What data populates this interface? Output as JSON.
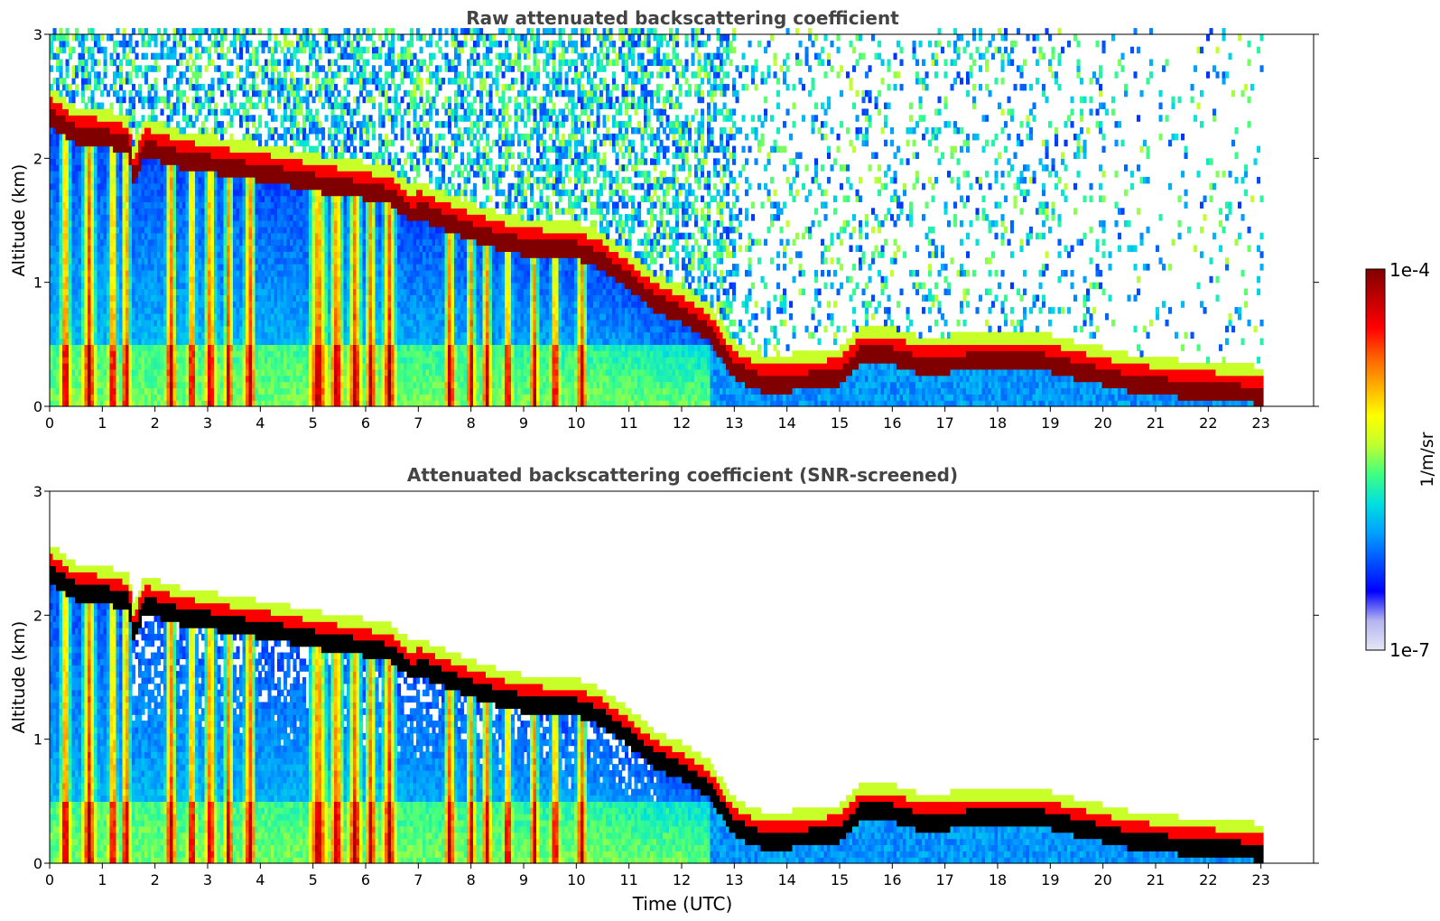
{
  "chart_data": [
    {
      "type": "heatmap",
      "title": "Raw attenuated backscattering coefficient",
      "ylabel": "Altitude (km)",
      "xlabel": "",
      "xlim": [
        0,
        24
      ],
      "ylim": [
        0,
        3
      ],
      "xticks": [
        "0",
        "1",
        "2",
        "3",
        "4",
        "5",
        "6",
        "7",
        "8",
        "9",
        "10",
        "11",
        "12",
        "13",
        "14",
        "15",
        "16",
        "17",
        "18",
        "19",
        "20",
        "21",
        "22",
        "23"
      ],
      "yticks": [
        "0",
        "1",
        "2",
        "3"
      ],
      "data_end_hour": 23,
      "screened": false,
      "cloud_base_km": [
        [
          0,
          2.35
        ],
        [
          0.5,
          2.2
        ],
        [
          1,
          2.18
        ],
        [
          1.5,
          2.12
        ],
        [
          1.6,
          1.85
        ],
        [
          1.8,
          2.1
        ],
        [
          2.5,
          2.0
        ],
        [
          3,
          1.97
        ],
        [
          3.5,
          1.93
        ],
        [
          4,
          1.9
        ],
        [
          4.5,
          1.86
        ],
        [
          5,
          1.82
        ],
        [
          5.5,
          1.78
        ],
        [
          6,
          1.75
        ],
        [
          6.5,
          1.7
        ],
        [
          6.9,
          1.55
        ],
        [
          7,
          1.6
        ],
        [
          7.5,
          1.5
        ],
        [
          8,
          1.42
        ],
        [
          8.5,
          1.35
        ],
        [
          9,
          1.3
        ],
        [
          9.5,
          1.28
        ],
        [
          10,
          1.27
        ],
        [
          10.5,
          1.18
        ],
        [
          11,
          1.02
        ],
        [
          11.5,
          0.85
        ],
        [
          12,
          0.75
        ],
        [
          12.5,
          0.62
        ],
        [
          13,
          0.3
        ],
        [
          13.5,
          0.2
        ],
        [
          14,
          0.2
        ],
        [
          14.5,
          0.22
        ],
        [
          15,
          0.25
        ],
        [
          15.4,
          0.42
        ],
        [
          16,
          0.42
        ],
        [
          16.5,
          0.35
        ],
        [
          17,
          0.35
        ],
        [
          17.5,
          0.37
        ],
        [
          18,
          0.38
        ],
        [
          18.5,
          0.38
        ],
        [
          19,
          0.36
        ],
        [
          19.5,
          0.3
        ],
        [
          20,
          0.25
        ],
        [
          20.5,
          0.2
        ],
        [
          21,
          0.18
        ],
        [
          21.5,
          0.15
        ],
        [
          22,
          0.14
        ],
        [
          22.5,
          0.12
        ],
        [
          23,
          0.1
        ]
      ],
      "fallstreaks": [
        [
          0.3,
          0.12
        ],
        [
          0.75,
          0.15
        ],
        [
          1.2,
          0.1
        ],
        [
          1.45,
          0.1
        ],
        [
          2.3,
          0.12
        ],
        [
          2.7,
          0.1
        ],
        [
          3.05,
          0.12
        ],
        [
          3.4,
          0.1
        ],
        [
          3.8,
          0.13
        ],
        [
          5.1,
          0.2
        ],
        [
          5.45,
          0.15
        ],
        [
          5.8,
          0.15
        ],
        [
          6.1,
          0.12
        ],
        [
          6.45,
          0.15
        ],
        [
          7.6,
          0.12
        ],
        [
          8.0,
          0.1
        ],
        [
          8.3,
          0.1
        ],
        [
          8.7,
          0.1
        ],
        [
          9.2,
          0.1
        ],
        [
          9.6,
          0.1
        ],
        [
          10.1,
          0.12
        ]
      ]
    },
    {
      "type": "heatmap",
      "title": "Attenuated backscattering coefficient (SNR-screened)",
      "ylabel": "Altitude (km)",
      "xlabel": "Time (UTC)",
      "xlim": [
        0,
        24
      ],
      "ylim": [
        0,
        3
      ],
      "xticks": [
        "0",
        "1",
        "2",
        "3",
        "4",
        "5",
        "6",
        "7",
        "8",
        "9",
        "10",
        "11",
        "12",
        "13",
        "14",
        "15",
        "16",
        "17",
        "18",
        "19",
        "20",
        "21",
        "22",
        "23"
      ],
      "yticks": [
        "0",
        "1",
        "2",
        "3"
      ],
      "data_end_hour": 23,
      "screened": true,
      "colorbar": {
        "label": "1/m/sr",
        "max_label": "1e-4",
        "min_label": "1e-7",
        "colors": [
          "#e6e6f5",
          "#b4b4f0",
          "#0000ff",
          "#0050ff",
          "#00a0ff",
          "#00e0e0",
          "#40ff80",
          "#c0ff30",
          "#ffff00",
          "#ffb000",
          "#ff6000",
          "#ff0000",
          "#c00000",
          "#800000"
        ]
      }
    }
  ]
}
